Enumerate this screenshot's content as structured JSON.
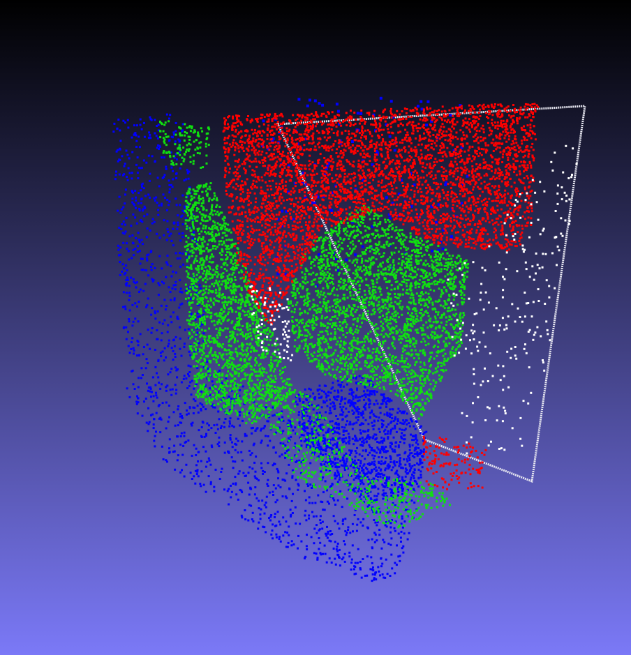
{
  "viewer": {
    "background_top": "#000000",
    "background_bottom": "#7b79f7"
  },
  "point_cloud": {
    "classes": [
      {
        "name": "red",
        "color": "#ff0000"
      },
      {
        "name": "green",
        "color": "#10e010"
      },
      {
        "name": "blue",
        "color": "#0000ff"
      },
      {
        "name": "white",
        "color": "#ffffff"
      }
    ]
  }
}
